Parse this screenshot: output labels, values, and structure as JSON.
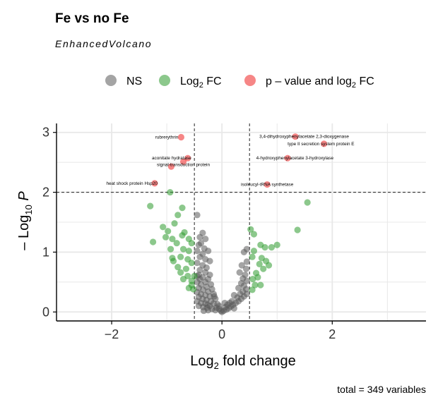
{
  "chart_data": {
    "type": "scatter",
    "title": "Fe vs no Fe",
    "subtitle": "EnhancedVolcano",
    "caption": "total = 349 variables",
    "xlabel": {
      "base": "Log",
      "sub": "2",
      "rest": " fold change"
    },
    "ylabel": {
      "prefix": "– Log",
      "sub": "10",
      "italic": " P"
    },
    "xlim": [
      -3,
      3.7
    ],
    "ylim": [
      -0.15,
      3.15
    ],
    "x_ticks": [
      -2,
      0,
      2
    ],
    "y_ticks": [
      0,
      1,
      2,
      3
    ],
    "grid": true,
    "legend_position": "top",
    "cutoffs": {
      "log2fc": [
        -0.5,
        0.5
      ],
      "neg_log10_p": 2.0
    },
    "legend": [
      {
        "key": "ns",
        "label": "NS",
        "color": "#5a5a5a"
      },
      {
        "key": "fc",
        "label_base": "Log",
        "label_sub": "2",
        "label_rest": " FC",
        "color": "#2e9a2e"
      },
      {
        "key": "sig",
        "label": "p – value and log",
        "label_sub": "2",
        "label_rest": " FC",
        "color": "#ee2222"
      }
    ],
    "series": [
      {
        "key": "sig",
        "points": [
          {
            "x": -0.74,
            "y": 2.92
          },
          {
            "x": -0.62,
            "y": 2.57
          },
          {
            "x": -0.7,
            "y": 2.51
          },
          {
            "x": -0.92,
            "y": 2.43
          },
          {
            "x": -1.22,
            "y": 2.15
          },
          {
            "x": 1.33,
            "y": 2.93
          },
          {
            "x": 1.85,
            "y": 2.81
          },
          {
            "x": 1.19,
            "y": 2.57
          },
          {
            "x": 0.82,
            "y": 2.13
          }
        ]
      },
      {
        "key": "fc",
        "points": [
          {
            "x": -0.94,
            "y": 2.0
          },
          {
            "x": -1.3,
            "y": 1.77
          },
          {
            "x": -0.72,
            "y": 1.74
          },
          {
            "x": -0.8,
            "y": 1.62
          },
          {
            "x": -1.07,
            "y": 1.42
          },
          {
            "x": -0.98,
            "y": 1.35
          },
          {
            "x": -0.86,
            "y": 1.48
          },
          {
            "x": -0.68,
            "y": 1.33
          },
          {
            "x": -0.72,
            "y": 1.28
          },
          {
            "x": -1.25,
            "y": 1.17
          },
          {
            "x": -1.02,
            "y": 1.25
          },
          {
            "x": -0.9,
            "y": 1.22
          },
          {
            "x": -0.82,
            "y": 1.15
          },
          {
            "x": -0.6,
            "y": 1.22
          },
          {
            "x": -0.55,
            "y": 1.15
          },
          {
            "x": -0.93,
            "y": 1.05
          },
          {
            "x": -0.7,
            "y": 1.05
          },
          {
            "x": -0.6,
            "y": 1.02
          },
          {
            "x": -0.9,
            "y": 0.9
          },
          {
            "x": -0.75,
            "y": 0.92
          },
          {
            "x": -0.62,
            "y": 0.88
          },
          {
            "x": -0.88,
            "y": 0.85
          },
          {
            "x": -0.55,
            "y": 0.82
          },
          {
            "x": -0.8,
            "y": 0.75
          },
          {
            "x": -0.65,
            "y": 0.72
          },
          {
            "x": -0.75,
            "y": 0.66
          },
          {
            "x": -0.62,
            "y": 0.6
          },
          {
            "x": -0.7,
            "y": 0.55
          },
          {
            "x": -0.55,
            "y": 0.52
          },
          {
            "x": -0.6,
            "y": 0.4
          },
          {
            "x": -0.55,
            "y": 0.45
          },
          {
            "x": -0.52,
            "y": 0.38
          },
          {
            "x": -0.5,
            "y": 0.6
          },
          {
            "x": 0.58,
            "y": 1.3
          },
          {
            "x": 0.52,
            "y": 1.38
          },
          {
            "x": 0.58,
            "y": 1.02
          },
          {
            "x": 0.55,
            "y": 0.92
          },
          {
            "x": 0.68,
            "y": 0.8
          },
          {
            "x": 0.75,
            "y": 0.72
          },
          {
            "x": 0.62,
            "y": 0.65
          },
          {
            "x": 0.56,
            "y": 0.55
          },
          {
            "x": 0.6,
            "y": 0.45
          },
          {
            "x": 0.7,
            "y": 0.45
          },
          {
            "x": 0.55,
            "y": 0.37
          },
          {
            "x": 0.72,
            "y": 0.9
          },
          {
            "x": 0.8,
            "y": 0.85
          },
          {
            "x": 0.85,
            "y": 0.78
          },
          {
            "x": 0.65,
            "y": 0.58
          },
          {
            "x": 0.7,
            "y": 1.12
          },
          {
            "x": 0.78,
            "y": 1.08
          },
          {
            "x": 0.9,
            "y": 1.08
          },
          {
            "x": 1.0,
            "y": 1.12
          },
          {
            "x": 1.37,
            "y": 1.37
          },
          {
            "x": 1.55,
            "y": 1.83
          }
        ]
      },
      {
        "key": "ns",
        "points": [
          {
            "x": -0.45,
            "y": 1.62
          },
          {
            "x": -0.35,
            "y": 1.32
          },
          {
            "x": -0.4,
            "y": 1.25
          },
          {
            "x": -0.3,
            "y": 1.22
          },
          {
            "x": -0.38,
            "y": 1.15
          },
          {
            "x": -0.42,
            "y": 1.12
          },
          {
            "x": -0.32,
            "y": 1.06
          },
          {
            "x": -0.25,
            "y": 1.02
          },
          {
            "x": -0.45,
            "y": 1.02
          },
          {
            "x": -0.35,
            "y": 0.97
          },
          {
            "x": -0.4,
            "y": 0.92
          },
          {
            "x": -0.3,
            "y": 0.88
          },
          {
            "x": -0.22,
            "y": 0.85
          },
          {
            "x": -0.45,
            "y": 0.82
          },
          {
            "x": -0.35,
            "y": 0.78
          },
          {
            "x": -0.28,
            "y": 0.74
          },
          {
            "x": -0.4,
            "y": 0.7
          },
          {
            "x": -0.3,
            "y": 0.66
          },
          {
            "x": -0.42,
            "y": 0.62
          },
          {
            "x": -0.22,
            "y": 0.62
          },
          {
            "x": -0.35,
            "y": 0.58
          },
          {
            "x": -0.25,
            "y": 0.55
          },
          {
            "x": -0.45,
            "y": 0.5
          },
          {
            "x": -0.3,
            "y": 0.5
          },
          {
            "x": -0.38,
            "y": 0.46
          },
          {
            "x": -0.2,
            "y": 0.46
          },
          {
            "x": -0.28,
            "y": 0.42
          },
          {
            "x": -0.42,
            "y": 0.4
          },
          {
            "x": -0.34,
            "y": 0.37
          },
          {
            "x": -0.18,
            "y": 0.38
          },
          {
            "x": -0.25,
            "y": 0.34
          },
          {
            "x": -0.45,
            "y": 0.33
          },
          {
            "x": -0.38,
            "y": 0.3
          },
          {
            "x": -0.3,
            "y": 0.28
          },
          {
            "x": -0.15,
            "y": 0.3
          },
          {
            "x": -0.22,
            "y": 0.26
          },
          {
            "x": -0.42,
            "y": 0.25
          },
          {
            "x": -0.35,
            "y": 0.22
          },
          {
            "x": -0.28,
            "y": 0.2
          },
          {
            "x": -0.12,
            "y": 0.22
          },
          {
            "x": -0.2,
            "y": 0.18
          },
          {
            "x": -0.45,
            "y": 0.18
          },
          {
            "x": -0.38,
            "y": 0.15
          },
          {
            "x": -0.3,
            "y": 0.14
          },
          {
            "x": -0.15,
            "y": 0.14
          },
          {
            "x": -0.08,
            "y": 0.13
          },
          {
            "x": -0.22,
            "y": 0.1
          },
          {
            "x": -0.42,
            "y": 0.1
          },
          {
            "x": -0.34,
            "y": 0.08
          },
          {
            "x": -0.27,
            "y": 0.07
          },
          {
            "x": -0.1,
            "y": 0.07
          },
          {
            "x": -0.18,
            "y": 0.05
          },
          {
            "x": -0.05,
            "y": 0.05
          },
          {
            "x": -0.12,
            "y": 0.03
          },
          {
            "x": -0.25,
            "y": 0.03
          },
          {
            "x": -0.02,
            "y": 0.02
          },
          {
            "x": 0.0,
            "y": 0.0
          },
          {
            "x": 0.03,
            "y": 0.02
          },
          {
            "x": 0.08,
            "y": 0.04
          },
          {
            "x": 0.12,
            "y": 0.06
          },
          {
            "x": 0.06,
            "y": 0.08
          },
          {
            "x": 0.16,
            "y": 0.09
          },
          {
            "x": 0.2,
            "y": 0.12
          },
          {
            "x": 0.1,
            "y": 0.12
          },
          {
            "x": 0.25,
            "y": 0.15
          },
          {
            "x": 0.3,
            "y": 0.18
          },
          {
            "x": 0.18,
            "y": 0.18
          },
          {
            "x": 0.35,
            "y": 0.22
          },
          {
            "x": 0.28,
            "y": 0.24
          },
          {
            "x": 0.4,
            "y": 0.26
          },
          {
            "x": 0.45,
            "y": 0.3
          },
          {
            "x": 0.33,
            "y": 0.3
          },
          {
            "x": 0.22,
            "y": 0.28
          },
          {
            "x": 0.38,
            "y": 0.34
          },
          {
            "x": 0.44,
            "y": 0.38
          },
          {
            "x": 0.3,
            "y": 0.4
          },
          {
            "x": 0.4,
            "y": 0.44
          },
          {
            "x": 0.35,
            "y": 0.48
          },
          {
            "x": 0.45,
            "y": 0.52
          },
          {
            "x": 0.38,
            "y": 0.56
          },
          {
            "x": 0.42,
            "y": 0.62
          },
          {
            "x": 0.32,
            "y": 0.66
          },
          {
            "x": 0.44,
            "y": 0.72
          },
          {
            "x": 0.36,
            "y": 0.78
          },
          {
            "x": 0.45,
            "y": 0.84
          },
          {
            "x": 0.4,
            "y": 1.0
          },
          {
            "x": 0.45,
            "y": 1.05
          },
          {
            "x": -0.05,
            "y": 0.1
          },
          {
            "x": -0.14,
            "y": 0.26
          },
          {
            "x": -0.26,
            "y": 0.12
          },
          {
            "x": -0.4,
            "y": 0.55
          },
          {
            "x": 0.14,
            "y": 0.15
          },
          {
            "x": 0.05,
            "y": 0.15
          },
          {
            "x": 0.22,
            "y": 0.06
          },
          {
            "x": -0.33,
            "y": 0.02
          },
          {
            "x": -0.45,
            "y": 0.6
          }
        ]
      }
    ],
    "annotations": [
      {
        "text": "rubrerythrin",
        "x": -0.74,
        "y": 2.92,
        "anchor": "end",
        "dx": -4
      },
      {
        "text": "aconitate hydratase",
        "x": -0.62,
        "y": 2.57,
        "anchor": "end",
        "dx": 5
      },
      {
        "text": "signal-transduction protein",
        "x": -0.7,
        "y": 2.46,
        "anchor": "middle",
        "dx": 0
      },
      {
        "text": "heat shock protein Hsp20",
        "x": -1.22,
        "y": 2.15,
        "anchor": "end",
        "dx": 4
      },
      {
        "text": "3,4-dihydroxyphenylacetate 2,3-dioxygenase",
        "x": 1.33,
        "y": 2.93,
        "anchor": "end",
        "dx": 76
      },
      {
        "text": "type II secretion system protein E",
        "x": 1.85,
        "y": 2.81,
        "anchor": "end",
        "dx": 43
      },
      {
        "text": "4-hydroxyphenylacetate 3-hydroxylase",
        "x": 1.19,
        "y": 2.57,
        "anchor": "end",
        "dx": 65
      },
      {
        "text": "isoleucyl-tRNA synthetase",
        "x": 0.82,
        "y": 2.13,
        "anchor": "middle",
        "dx": 0
      }
    ]
  }
}
